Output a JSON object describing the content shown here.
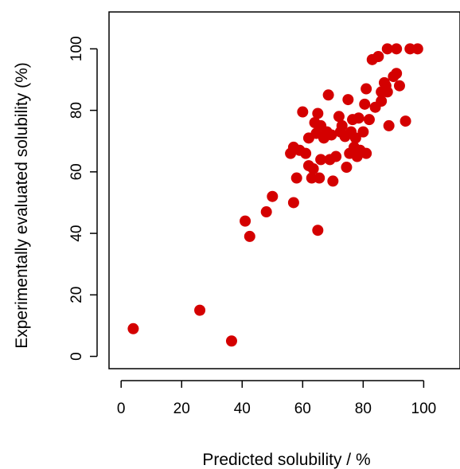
{
  "chart_data": {
    "type": "scatter",
    "title": "",
    "xlabel": "Predicted solubility / %",
    "ylabel": "Experimentally evaluated solubility (%)",
    "xlim": [
      -4,
      112
    ],
    "ylim": [
      -4,
      112
    ],
    "xticks": [
      0,
      20,
      40,
      60,
      80,
      100
    ],
    "yticks": [
      0,
      20,
      40,
      60,
      80,
      100
    ],
    "grid": false,
    "marker_color": "#d40000",
    "points": [
      {
        "x": 4,
        "y": 9
      },
      {
        "x": 26,
        "y": 15
      },
      {
        "x": 36.5,
        "y": 5
      },
      {
        "x": 41,
        "y": 44
      },
      {
        "x": 42.5,
        "y": 39
      },
      {
        "x": 48,
        "y": 47
      },
      {
        "x": 50,
        "y": 52
      },
      {
        "x": 57,
        "y": 50
      },
      {
        "x": 65,
        "y": 41
      },
      {
        "x": 56,
        "y": 66
      },
      {
        "x": 57,
        "y": 68
      },
      {
        "x": 58,
        "y": 58
      },
      {
        "x": 59,
        "y": 67
      },
      {
        "x": 60,
        "y": 79.5
      },
      {
        "x": 61,
        "y": 66
      },
      {
        "x": 62,
        "y": 71
      },
      {
        "x": 62,
        "y": 62
      },
      {
        "x": 63,
        "y": 58
      },
      {
        "x": 63.5,
        "y": 61
      },
      {
        "x": 64,
        "y": 76
      },
      {
        "x": 64.5,
        "y": 72.5
      },
      {
        "x": 65,
        "y": 79
      },
      {
        "x": 65.5,
        "y": 58
      },
      {
        "x": 66,
        "y": 64
      },
      {
        "x": 66,
        "y": 75
      },
      {
        "x": 67,
        "y": 71
      },
      {
        "x": 68,
        "y": 73
      },
      {
        "x": 68.5,
        "y": 85
      },
      {
        "x": 69,
        "y": 64
      },
      {
        "x": 69.5,
        "y": 72
      },
      {
        "x": 70,
        "y": 57
      },
      {
        "x": 71,
        "y": 65
      },
      {
        "x": 72,
        "y": 78
      },
      {
        "x": 72.5,
        "y": 73
      },
      {
        "x": 73,
        "y": 75
      },
      {
        "x": 74,
        "y": 71.5
      },
      {
        "x": 74.5,
        "y": 61.5
      },
      {
        "x": 75,
        "y": 83.5
      },
      {
        "x": 75.5,
        "y": 66
      },
      {
        "x": 76,
        "y": 73
      },
      {
        "x": 76.5,
        "y": 77
      },
      {
        "x": 77,
        "y": 68
      },
      {
        "x": 77.5,
        "y": 71
      },
      {
        "x": 78,
        "y": 65
      },
      {
        "x": 78.5,
        "y": 77.5
      },
      {
        "x": 79,
        "y": 67
      },
      {
        "x": 80,
        "y": 73
      },
      {
        "x": 80.5,
        "y": 82
      },
      {
        "x": 81,
        "y": 87
      },
      {
        "x": 81,
        "y": 66
      },
      {
        "x": 82,
        "y": 77
      },
      {
        "x": 83,
        "y": 96.5
      },
      {
        "x": 84,
        "y": 81
      },
      {
        "x": 85,
        "y": 97.5
      },
      {
        "x": 86,
        "y": 83
      },
      {
        "x": 86,
        "y": 86
      },
      {
        "x": 87,
        "y": 89
      },
      {
        "x": 87.5,
        "y": 88
      },
      {
        "x": 88,
        "y": 86
      },
      {
        "x": 88,
        "y": 100
      },
      {
        "x": 88.5,
        "y": 75
      },
      {
        "x": 90,
        "y": 91
      },
      {
        "x": 91,
        "y": 100
      },
      {
        "x": 91,
        "y": 92
      },
      {
        "x": 92,
        "y": 88
      },
      {
        "x": 94,
        "y": 76.5
      },
      {
        "x": 95.5,
        "y": 100
      },
      {
        "x": 98,
        "y": 100
      }
    ]
  }
}
